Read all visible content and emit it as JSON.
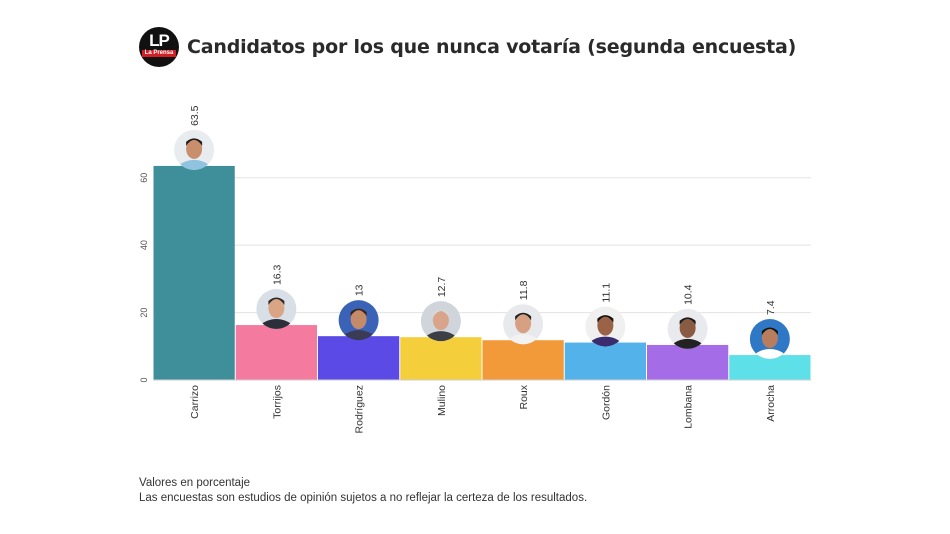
{
  "header": {
    "logo_text": "LP",
    "logo_subtext": "La Prensa",
    "title": "Candidatos por los que nunca votaría (segunda encuesta)"
  },
  "chart_data": {
    "type": "bar",
    "title": "Candidatos por los que nunca votaría (segunda encuesta)",
    "xlabel": "",
    "ylabel": "",
    "ylim": [
      0,
      70
    ],
    "yticks": [
      0,
      20,
      40,
      60
    ],
    "grid": true,
    "categories": [
      "Carrizo",
      "Torrijos",
      "Rodríguez",
      "Mulino",
      "Roux",
      "Gordón",
      "Lombana",
      "Arrocha"
    ],
    "values": [
      63.5,
      16.3,
      13,
      12.7,
      11.8,
      11.1,
      10.4,
      7.4
    ],
    "value_labels": [
      "63.5",
      "16.3",
      "13",
      "12.7",
      "11.8",
      "11.1",
      "10.4",
      "7.4"
    ],
    "colors": [
      "#3f8f9b",
      "#f47aa0",
      "#5b4ae6",
      "#f5ce3c",
      "#f29a3a",
      "#54b2ea",
      "#a56ce8",
      "#5ee0e8"
    ],
    "avatar_icons": [
      "portrait-icon",
      "portrait-icon",
      "portrait-icon",
      "portrait-icon",
      "portrait-icon",
      "portrait-icon",
      "portrait-icon",
      "portrait-icon"
    ]
  },
  "footer": {
    "line1": "Valores en porcentaje",
    "line2": "Las encuestas son estudios de opinión sujetos a no reflejar la certeza de los resultados."
  }
}
